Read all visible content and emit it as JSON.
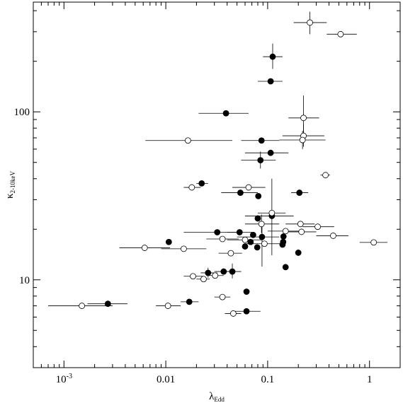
{
  "chart_data": {
    "type": "scatter",
    "title": "",
    "xlabel": "λ",
    "xlabel_sub": "Edd",
    "ylabel": "κ",
    "ylabel_sub": "2-10keV",
    "x_scale": "log",
    "y_scale": "log",
    "xlim": [
      0.0005,
      2.0
    ],
    "ylim": [
      3.0,
      450.0
    ],
    "x_major_ticks": [
      0.001,
      0.01,
      0.1,
      1
    ],
    "x_tick_labels": [
      "10",
      "0.01",
      "0.1",
      "1"
    ],
    "x_tick_label_exponent": "-3",
    "y_major_ticks": [
      10,
      100
    ],
    "y_tick_labels": [
      "10",
      "100"
    ],
    "grid": false,
    "legend": "none",
    "marker_color": "#000000",
    "series": [
      {
        "marker": "filled circle",
        "points": [
          {
            "x": 0.0027,
            "y": 7.2,
            "xerr": [
              0.0017,
              0.0042
            ],
            "yerr": [
              6.9,
              7.5
            ]
          },
          {
            "x": 0.0107,
            "y": 16.8
          },
          {
            "x": 0.017,
            "y": 7.4,
            "xerr": [
              0.014,
              0.021
            ]
          },
          {
            "x": 0.0225,
            "y": 37.5,
            "xerr": [
              0.02,
              0.026
            ]
          },
          {
            "x": 0.026,
            "y": 11.0,
            "xerr": [
              0.022,
              0.032
            ],
            "yerr": [
              10.3,
              11.8
            ]
          },
          {
            "x": 0.032,
            "y": 19.2,
            "xerr": [
              0.015,
              0.055
            ]
          },
          {
            "x": 0.037,
            "y": 11.2,
            "xerr": [
              0.03,
              0.045
            ]
          },
          {
            "x": 0.039,
            "y": 98.0,
            "xerr": [
              0.021,
              0.065
            ]
          },
          {
            "x": 0.045,
            "y": 11.2,
            "xerr": [
              0.038,
              0.055
            ],
            "yerr": [
              10.2,
              12.5
            ]
          },
          {
            "x": 0.053,
            "y": 19.2,
            "xerr": [
              0.04,
              0.07
            ]
          },
          {
            "x": 0.054,
            "y": 33.0,
            "xerr": [
              0.035,
              0.08
            ]
          },
          {
            "x": 0.06,
            "y": 15.8
          },
          {
            "x": 0.062,
            "y": 8.5
          },
          {
            "x": 0.062,
            "y": 6.5,
            "xerr": [
              0.045,
              0.085
            ]
          },
          {
            "x": 0.068,
            "y": 16.8
          },
          {
            "x": 0.072,
            "y": 18.5
          },
          {
            "x": 0.079,
            "y": 15.6
          },
          {
            "x": 0.08,
            "y": 23.2
          },
          {
            "x": 0.081,
            "y": 31.5
          },
          {
            "x": 0.085,
            "y": 51.5,
            "xerr": [
              0.055,
              0.12
            ],
            "yerr": [
              46.0,
              58.0
            ]
          },
          {
            "x": 0.087,
            "y": 67.5,
            "xerr": [
              0.055,
              0.13
            ]
          },
          {
            "x": 0.088,
            "y": 18.0,
            "xerr": [
              0.05,
              0.13
            ],
            "yerr": [
              12.0,
              22.0
            ]
          },
          {
            "x": 0.107,
            "y": 57.0,
            "xerr": [
              0.06,
              0.16
            ]
          },
          {
            "x": 0.107,
            "y": 152.0,
            "xerr": [
              0.08,
              0.14
            ]
          },
          {
            "x": 0.11,
            "y": 24.0,
            "xerr": [
              0.06,
              0.18
            ],
            "yerr": [
              14.0,
              40.0
            ]
          },
          {
            "x": 0.112,
            "y": 213.0,
            "xerr": [
              0.09,
              0.14
            ],
            "yerr": [
              180.0,
              255.0
            ]
          },
          {
            "x": 0.14,
            "y": 16.2
          },
          {
            "x": 0.142,
            "y": 16.8
          },
          {
            "x": 0.143,
            "y": 18.1
          },
          {
            "x": 0.15,
            "y": 11.9
          },
          {
            "x": 0.2,
            "y": 14.5
          },
          {
            "x": 0.205,
            "y": 33.0,
            "xerr": [
              0.17,
              0.25
            ]
          }
        ]
      },
      {
        "marker": "open circle",
        "points": [
          {
            "x": 0.0015,
            "y": 7.0,
            "xerr": [
              0.0007,
              0.003
            ]
          },
          {
            "x": 0.0062,
            "y": 15.5,
            "xerr": [
              0.0035,
              0.011
            ]
          },
          {
            "x": 0.0105,
            "y": 7.0,
            "xerr": [
              0.008,
              0.014
            ]
          },
          {
            "x": 0.015,
            "y": 15.3,
            "xerr": [
              0.009,
              0.025
            ]
          },
          {
            "x": 0.0165,
            "y": 67.5,
            "xerr": [
              0.0063,
              0.045
            ]
          },
          {
            "x": 0.018,
            "y": 35.5,
            "xerr": [
              0.015,
              0.022
            ]
          },
          {
            "x": 0.0185,
            "y": 10.5,
            "xerr": [
              0.015,
              0.023
            ]
          },
          {
            "x": 0.0235,
            "y": 10.1,
            "xerr": [
              0.02,
              0.027
            ]
          },
          {
            "x": 0.0305,
            "y": 10.6,
            "xerr": [
              0.025,
              0.037
            ]
          },
          {
            "x": 0.036,
            "y": 7.9,
            "xerr": [
              0.03,
              0.043
            ]
          },
          {
            "x": 0.036,
            "y": 17.5,
            "xerr": [
              0.025,
              0.052
            ]
          },
          {
            "x": 0.0435,
            "y": 14.4,
            "xerr": [
              0.033,
              0.056
            ]
          },
          {
            "x": 0.046,
            "y": 6.3,
            "xerr": [
              0.038,
              0.055
            ]
          },
          {
            "x": 0.06,
            "y": 17.3,
            "xerr": [
              0.04,
              0.09
            ]
          },
          {
            "x": 0.065,
            "y": 35.5,
            "xerr": [
              0.045,
              0.095
            ]
          },
          {
            "x": 0.087,
            "y": 21.5,
            "xerr": [
              0.06,
              0.13
            ],
            "yerr": [
              19.0,
              24.5
            ]
          },
          {
            "x": 0.093,
            "y": 16.4,
            "xerr": [
              0.06,
              0.145
            ]
          },
          {
            "x": 0.11,
            "y": 25.0,
            "xerr": [
              0.08,
              0.15
            ]
          },
          {
            "x": 0.15,
            "y": 19.5,
            "xerr": [
              0.1,
              0.22
            ]
          },
          {
            "x": 0.21,
            "y": 21.5,
            "xerr": [
              0.15,
              0.29
            ]
          },
          {
            "x": 0.215,
            "y": 19.3,
            "xerr": [
              0.15,
              0.3
            ]
          },
          {
            "x": 0.225,
            "y": 92.0,
            "xerr": [
              0.16,
              0.32
            ],
            "yerr": [
              65.0,
              125.0
            ]
          },
          {
            "x": 0.225,
            "y": 72.0,
            "xerr": [
              0.14,
              0.36
            ],
            "yerr": [
              62.0,
              84.0
            ]
          },
          {
            "x": 0.22,
            "y": 68.0,
            "xerr": [
              0.13,
              0.37
            ],
            "yerr": [
              60.0,
              77.0
            ]
          },
          {
            "x": 0.26,
            "y": 340.0,
            "xerr": [
              0.18,
              0.38
            ],
            "yerr": [
              290.0,
              395.0
            ]
          },
          {
            "x": 0.31,
            "y": 20.7,
            "xerr": [
              0.22,
              0.45
            ]
          },
          {
            "x": 0.37,
            "y": 42.0,
            "xerr": [
              0.33,
              0.41
            ]
          },
          {
            "x": 0.44,
            "y": 18.3,
            "xerr": [
              0.3,
              0.62
            ]
          },
          {
            "x": 0.52,
            "y": 290.0,
            "xerr": [
              0.38,
              0.75
            ]
          },
          {
            "x": 1.1,
            "y": 16.7,
            "xerr": [
              0.8,
              1.5
            ]
          }
        ]
      }
    ]
  }
}
